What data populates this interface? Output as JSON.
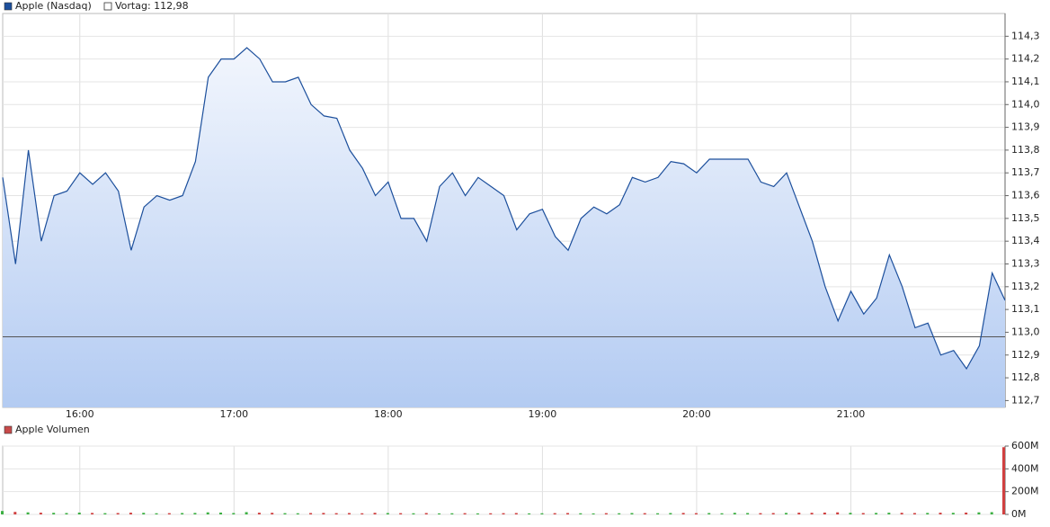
{
  "chart_data": [
    {
      "type": "line",
      "series": [
        {
          "name": "Apple (Nasdaq)",
          "color": "#1c4f9c",
          "values": [
            113.68,
            113.3,
            113.8,
            113.4,
            113.6,
            113.62,
            113.7,
            113.65,
            113.7,
            113.62,
            113.36,
            113.55,
            113.6,
            113.58,
            113.6,
            113.75,
            114.12,
            114.2,
            114.2,
            114.25,
            114.2,
            114.1,
            114.1,
            114.12,
            114.0,
            113.95,
            113.94,
            113.8,
            113.72,
            113.6,
            113.66,
            113.5,
            113.5,
            113.4,
            113.64,
            113.7,
            113.6,
            113.68,
            113.64,
            113.6,
            113.45,
            113.52,
            113.54,
            113.42,
            113.36,
            113.5,
            113.55,
            113.52,
            113.56,
            113.68,
            113.66,
            113.68,
            113.75,
            113.74,
            113.7,
            113.76,
            113.76,
            113.76,
            113.76,
            113.66,
            113.64,
            113.7,
            113.55,
            113.4,
            113.2,
            113.05,
            113.18,
            113.08,
            113.15,
            113.34,
            113.2,
            113.02,
            113.04,
            112.9,
            112.92,
            112.84,
            112.94,
            113.26,
            113.14
          ]
        }
      ],
      "x": [
        "15:30",
        "15:35",
        "15:40",
        "15:45",
        "15:50",
        "15:55",
        "16:00",
        "16:05",
        "16:10",
        "16:15",
        "16:20",
        "16:25",
        "16:30",
        "16:35",
        "16:40",
        "16:45",
        "16:50",
        "16:55",
        "17:00",
        "17:05",
        "17:10",
        "17:15",
        "17:20",
        "17:25",
        "17:30",
        "17:35",
        "17:40",
        "17:45",
        "17:50",
        "17:55",
        "18:00",
        "18:05",
        "18:10",
        "18:15",
        "18:20",
        "18:25",
        "18:30",
        "18:35",
        "18:40",
        "18:45",
        "18:50",
        "18:55",
        "19:00",
        "19:05",
        "19:10",
        "19:15",
        "19:20",
        "19:25",
        "19:30",
        "19:35",
        "19:40",
        "19:45",
        "19:50",
        "19:55",
        "20:00",
        "20:05",
        "20:10",
        "20:15",
        "20:20",
        "20:25",
        "20:30",
        "20:35",
        "20:40",
        "20:45",
        "20:50",
        "20:55",
        "21:00",
        "21:05",
        "21:10",
        "21:15",
        "21:20",
        "21:25",
        "21:30",
        "21:35",
        "21:40",
        "21:45",
        "21:50",
        "21:55",
        "22:00"
      ],
      "xlim": [
        "15:30",
        "22:00"
      ],
      "xticks": [
        "16:00",
        "17:00",
        "18:00",
        "19:00",
        "20:00",
        "21:00"
      ],
      "ylim": [
        112.67,
        114.4
      ],
      "yticks": [
        {
          "value": 112.7,
          "label": "112,7"
        },
        {
          "value": 112.8,
          "label": "112,8"
        },
        {
          "value": 112.9,
          "label": "112,9"
        },
        {
          "value": 113.0,
          "label": "113,0"
        },
        {
          "value": 113.1,
          "label": "113,1"
        },
        {
          "value": 113.2,
          "label": "113,2"
        },
        {
          "value": 113.3,
          "label": "113,3"
        },
        {
          "value": 113.4,
          "label": "113,4"
        },
        {
          "value": 113.5,
          "label": "113,5"
        },
        {
          "value": 113.6,
          "label": "113,6"
        },
        {
          "value": 113.7,
          "label": "113,7"
        },
        {
          "value": 113.8,
          "label": "113,8"
        },
        {
          "value": 113.9,
          "label": "113,9"
        },
        {
          "value": 114.0,
          "label": "114,0"
        },
        {
          "value": 114.1,
          "label": "114,1"
        },
        {
          "value": 114.2,
          "label": "114,2"
        },
        {
          "value": 114.3,
          "label": "114,3"
        }
      ],
      "reference_line": {
        "value": 112.98,
        "label": "Vortag: 112,98",
        "color": "#555555"
      },
      "grid": true
    },
    {
      "type": "bar",
      "series": [
        {
          "name": "Apple Volumen",
          "color": "#c84a4a",
          "values": [
            30000000,
            22000000,
            18000000,
            15000000,
            14000000,
            12000000,
            16000000,
            13000000,
            11000000,
            12000000,
            15000000,
            14000000,
            10000000,
            11000000,
            12000000,
            13000000,
            18000000,
            16000000,
            12000000,
            20000000,
            15000000,
            14000000,
            11000000,
            10000000,
            12000000,
            13000000,
            11000000,
            12000000,
            10000000,
            14000000,
            12000000,
            11000000,
            10000000,
            12000000,
            9000000,
            10000000,
            11000000,
            9000000,
            10000000,
            11000000,
            12000000,
            9000000,
            10000000,
            11000000,
            12000000,
            10000000,
            9000000,
            11000000,
            10000000,
            12000000,
            11000000,
            10000000,
            12000000,
            13000000,
            11000000,
            12000000,
            10000000,
            14000000,
            12000000,
            11000000,
            12000000,
            13000000,
            15000000,
            14000000,
            16000000,
            18000000,
            14000000,
            12000000,
            13000000,
            15000000,
            14000000,
            12000000,
            13000000,
            15000000,
            14000000,
            16000000,
            18000000,
            20000000,
            590000000
          ]
        }
      ],
      "x": [
        "15:30",
        "15:35",
        "15:40",
        "15:45",
        "15:50",
        "15:55",
        "16:00",
        "16:05",
        "16:10",
        "16:15",
        "16:20",
        "16:25",
        "16:30",
        "16:35",
        "16:40",
        "16:45",
        "16:50",
        "16:55",
        "17:00",
        "17:05",
        "17:10",
        "17:15",
        "17:20",
        "17:25",
        "17:30",
        "17:35",
        "17:40",
        "17:45",
        "17:50",
        "17:55",
        "18:00",
        "18:05",
        "18:10",
        "18:15",
        "18:20",
        "18:25",
        "18:30",
        "18:35",
        "18:40",
        "18:45",
        "18:50",
        "18:55",
        "19:00",
        "19:05",
        "19:10",
        "19:15",
        "19:20",
        "19:25",
        "19:30",
        "19:35",
        "19:40",
        "19:45",
        "19:50",
        "19:55",
        "20:00",
        "20:05",
        "20:10",
        "20:15",
        "20:20",
        "20:25",
        "20:30",
        "20:35",
        "20:40",
        "20:45",
        "20:50",
        "20:55",
        "21:00",
        "21:05",
        "21:10",
        "21:15",
        "21:20",
        "21:25",
        "21:30",
        "21:35",
        "21:40",
        "21:45",
        "21:50",
        "21:55",
        "22:00"
      ],
      "xlim": [
        "15:30",
        "22:00"
      ],
      "xticks": [
        "16:00",
        "17:00",
        "18:00",
        "19:00",
        "20:00",
        "21:00"
      ],
      "ylim": [
        0,
        600000000
      ],
      "yticks": [
        {
          "value": 0,
          "label": "0M"
        },
        {
          "value": 200000000,
          "label": "200M"
        },
        {
          "value": 400000000,
          "label": "400M"
        },
        {
          "value": 600000000,
          "label": "600M"
        }
      ],
      "up_color": "#3cb043",
      "down_color": "#d04040",
      "grid": true
    }
  ]
}
